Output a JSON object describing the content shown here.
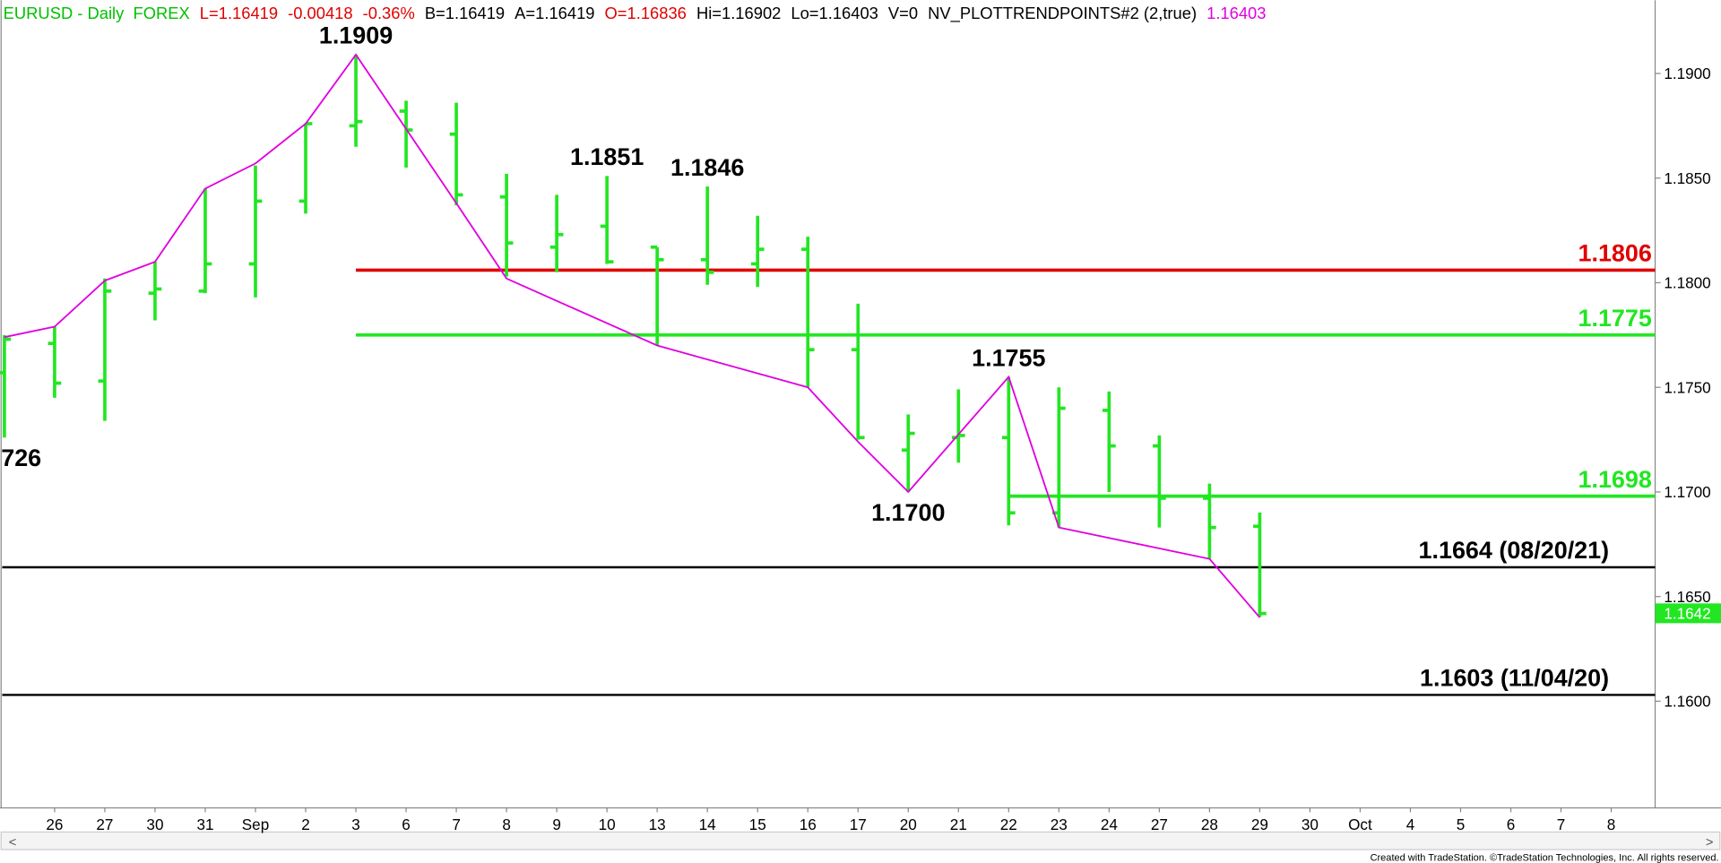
{
  "chart_data": {
    "type": "ohlc",
    "header": [
      {
        "text": "EURUSD - Daily  FOREX",
        "color": "#00c000"
      },
      {
        "text": "L=1.16419",
        "color": "#e00000"
      },
      {
        "text": "-0.00418",
        "color": "#e00000"
      },
      {
        "text": "-0.36%",
        "color": "#e00000"
      },
      {
        "text": "B=1.16419",
        "color": "#000000"
      },
      {
        "text": "A=1.16419",
        "color": "#000000"
      },
      {
        "text": "O=1.16836",
        "color": "#e00000"
      },
      {
        "text": "Hi=1.16902",
        "color": "#000000"
      },
      {
        "text": "Lo=1.16403",
        "color": "#000000"
      },
      {
        "text": "V=0",
        "color": "#000000"
      },
      {
        "text": "NV_PLOTTRENDPOINTS#2 (2,true)",
        "color": "#000000"
      },
      {
        "text": "1.16403",
        "color": "#e000e0"
      }
    ],
    "categories": [
      null,
      "26",
      "27",
      "30",
      "31",
      "Sep",
      "2",
      "3",
      "6",
      "7",
      "8",
      "9",
      "10",
      "13",
      "14",
      "15",
      "16",
      "17",
      "20",
      "21",
      "22",
      "23",
      "24",
      "27",
      "28",
      "29",
      "30",
      "Oct",
      "4",
      "5",
      "6",
      "7",
      "8"
    ],
    "open": [
      1.1757,
      1.1771,
      1.1753,
      1.1795,
      1.1796,
      1.1809,
      1.1839,
      1.1875,
      1.1882,
      1.1871,
      1.1841,
      1.1817,
      1.1827,
      1.1817,
      1.1811,
      1.1809,
      1.1816,
      1.1768,
      1.172,
      1.1726,
      1.1726,
      1.169,
      1.1739,
      1.1722,
      1.1697,
      1.16836,
      null,
      null,
      null,
      null,
      null,
      null,
      null
    ],
    "high": [
      1.1775,
      1.1779,
      1.1802,
      1.181,
      1.1845,
      1.1856,
      1.1876,
      1.1909,
      1.1887,
      1.1886,
      1.1852,
      1.1842,
      1.1851,
      1.1817,
      1.1846,
      1.1832,
      1.1822,
      1.179,
      1.1737,
      1.1749,
      1.1755,
      1.175,
      1.1748,
      1.1727,
      1.1704,
      1.16902,
      null,
      null,
      null,
      null,
      null,
      null,
      null
    ],
    "low": [
      1.1726,
      1.1745,
      1.1734,
      1.1782,
      1.1795,
      1.1793,
      1.1833,
      1.1865,
      1.1855,
      1.1837,
      1.1803,
      1.1805,
      1.1809,
      1.177,
      1.1799,
      1.1798,
      1.175,
      1.1725,
      1.17,
      1.1714,
      1.1684,
      1.1683,
      1.17,
      1.1683,
      1.1668,
      1.16403,
      null,
      null,
      null,
      null,
      null,
      null,
      null
    ],
    "close": [
      1.1773,
      1.1752,
      1.1796,
      1.1797,
      1.1809,
      1.1839,
      1.1876,
      1.1877,
      1.1873,
      1.1842,
      1.1819,
      1.1823,
      1.181,
      1.1811,
      1.1805,
      1.1816,
      1.1768,
      1.1726,
      1.1728,
      1.1727,
      1.169,
      1.174,
      1.1722,
      1.1697,
      1.1683,
      1.16419,
      null,
      null,
      null,
      null,
      null,
      null,
      null
    ],
    "color": "#22e622",
    "trend": {
      "color": "#e000e0",
      "x": [
        0,
        1,
        2,
        3,
        4,
        5,
        6,
        7,
        9,
        10,
        13,
        16,
        17,
        18,
        20,
        21,
        24,
        25
      ],
      "values": [
        1.1774,
        1.1779,
        1.1801,
        1.181,
        1.1845,
        1.1857,
        1.1876,
        1.1909,
        1.1838,
        1.1802,
        1.177,
        1.175,
        1.1724,
        1.17,
        1.1755,
        1.1683,
        1.1668,
        1.164
      ]
    },
    "levels": [
      {
        "value": 1.1806,
        "label": "1.1806",
        "color": "#e00000",
        "start": 7
      },
      {
        "value": 1.1775,
        "label": "1.1775",
        "color": "#22e622",
        "start": 7
      },
      {
        "value": 1.1698,
        "label": "1.1698",
        "color": "#22e622",
        "start": 20
      },
      {
        "value": 1.1664,
        "label": "1.1664 (08/20/21)",
        "color": "#000000",
        "start": 0
      },
      {
        "value": 1.1603,
        "label": "1.1603 (11/04/20)",
        "color": "#000000",
        "start": 0
      }
    ],
    "annotations": [
      {
        "x": 7,
        "value": 1.1909,
        "label": "1.1909",
        "pos": "above"
      },
      {
        "x": 12,
        "value": 1.1851,
        "label": "1.1851",
        "pos": "above"
      },
      {
        "x": 14,
        "value": 1.1846,
        "label": "1.1846",
        "pos": "above"
      },
      {
        "x": 20,
        "value": 1.1755,
        "label": "1.1755",
        "pos": "above"
      },
      {
        "x": 18,
        "value": 1.17,
        "label": "1.1700",
        "pos": "below"
      },
      {
        "x": 0,
        "value": 1.1726,
        "label": "726",
        "pos": "below"
      }
    ],
    "last_price": 1.1642,
    "ylim": [
      1.1549,
      1.1935
    ],
    "yticks": [
      {
        "value": 1.16,
        "label": "1.1600"
      },
      {
        "value": 1.165,
        "label": "1.1650"
      },
      {
        "value": 1.17,
        "label": "1.1700"
      },
      {
        "value": 1.175,
        "label": "1.1750"
      },
      {
        "value": 1.18,
        "label": "1.1800"
      },
      {
        "value": 1.185,
        "label": "1.1850"
      },
      {
        "value": 1.19,
        "label": "1.1900"
      }
    ],
    "footer": "Created with TradeStation. ©TradeStation Technologies, Inc. All rights reserved.",
    "scroll_left": "<",
    "scroll_right": ">"
  }
}
